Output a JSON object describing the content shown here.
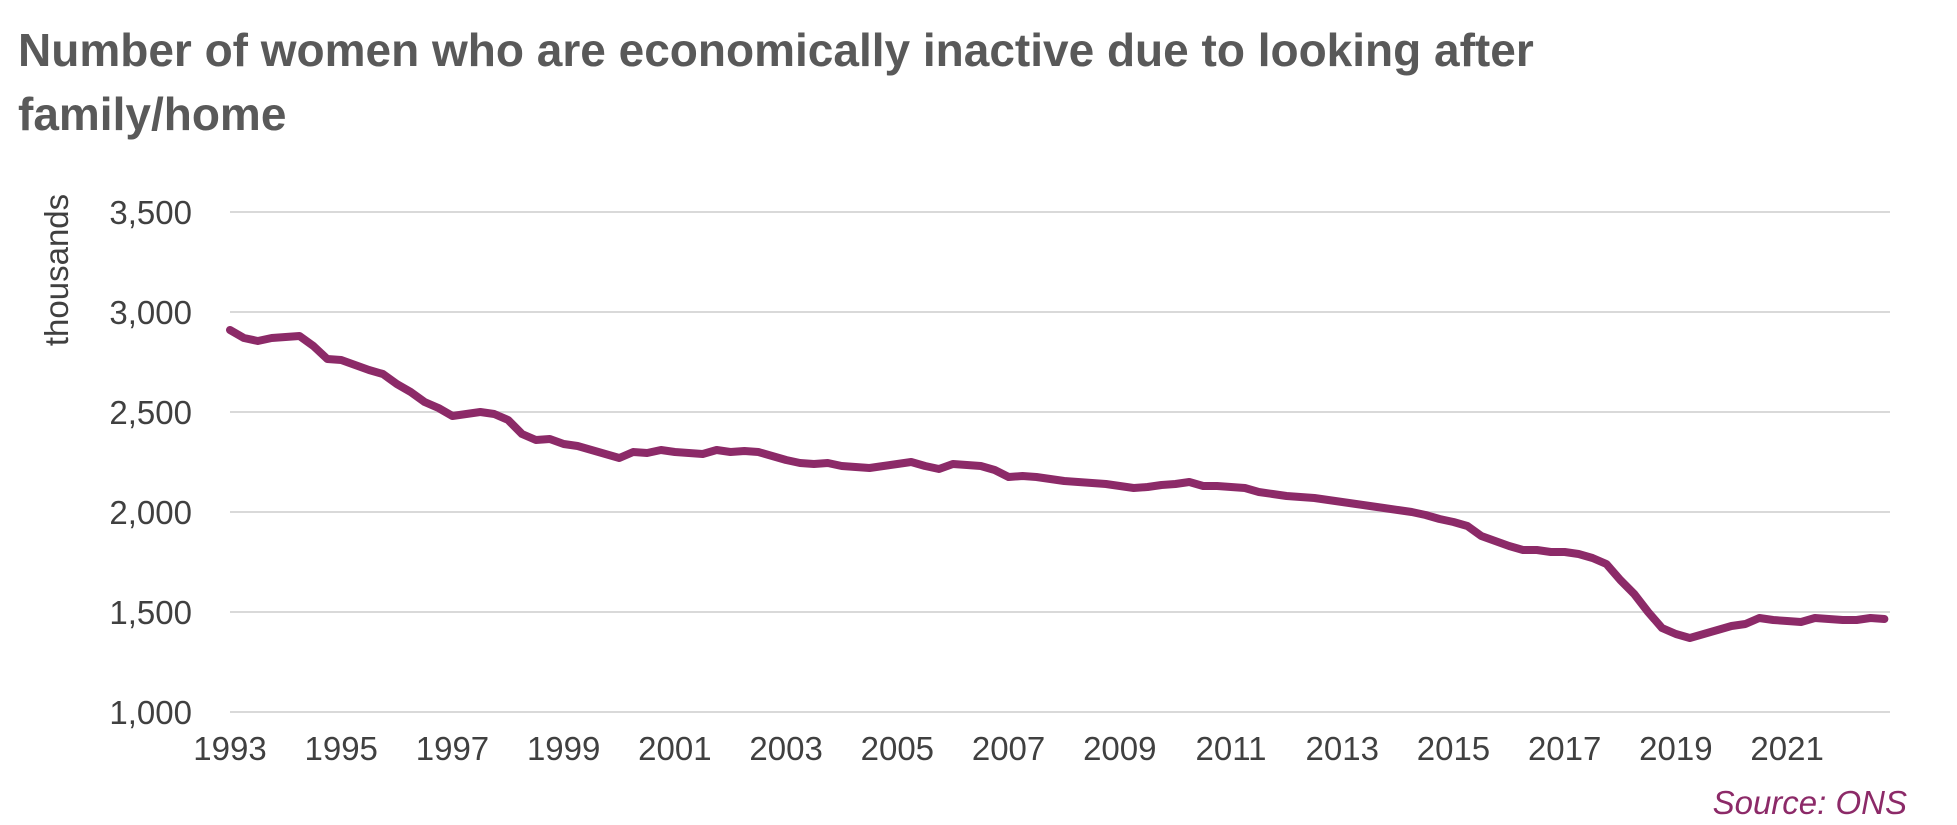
{
  "title": "Number of women who are economically inactive due to looking after family/home",
  "source": "Source: ONS",
  "colors": {
    "series": "#8c2a68",
    "grid": "#d9d9d9",
    "text": "#404040",
    "title": "#595959"
  },
  "chart_data": {
    "type": "line",
    "title": "Number of women who are economically inactive due to looking after family/home",
    "xlabel": "",
    "ylabel": "thousands",
    "xlim": [
      1993.0,
      2022.85
    ],
    "ylim": [
      1000,
      3500
    ],
    "x_ticks": [
      "1993",
      "1995",
      "1997",
      "1999",
      "2001",
      "2003",
      "2005",
      "2007",
      "2009",
      "2011",
      "2013",
      "2015",
      "2017",
      "2019",
      "2021"
    ],
    "y_ticks": [
      "1,000",
      "1,500",
      "2,000",
      "2,500",
      "3,000",
      "3,500"
    ],
    "grid": "horizontal",
    "legend": "none",
    "series": [
      {
        "x": [
          1993.0,
          1993.25,
          1993.5,
          1993.75,
          1994.0,
          1994.25,
          1994.5,
          1994.75,
          1995.0,
          1995.25,
          1995.5,
          1995.75,
          1996.0,
          1996.25,
          1996.5,
          1996.75,
          1997.0,
          1997.25,
          1997.5,
          1997.75,
          1998.0,
          1998.25,
          1998.5,
          1998.75,
          1999.0,
          1999.25,
          1999.5,
          1999.75,
          2000.0,
          2000.25,
          2000.5,
          2000.75,
          2001.0,
          2001.25,
          2001.5,
          2001.75,
          2002.0,
          2002.25,
          2002.5,
          2002.75,
          2003.0,
          2003.25,
          2003.5,
          2003.75,
          2004.0,
          2004.25,
          2004.5,
          2004.75,
          2005.0,
          2005.25,
          2005.5,
          2005.75,
          2006.0,
          2006.25,
          2006.5,
          2006.75,
          2007.0,
          2007.25,
          2007.5,
          2007.75,
          2008.0,
          2008.25,
          2008.5,
          2008.75,
          2009.0,
          2009.25,
          2009.5,
          2009.75,
          2010.0,
          2010.25,
          2010.5,
          2010.75,
          2011.0,
          2011.25,
          2011.5,
          2011.75,
          2012.0,
          2012.25,
          2012.5,
          2012.75,
          2013.0,
          2013.25,
          2013.5,
          2013.75,
          2014.0,
          2014.25,
          2014.5,
          2014.75,
          2015.0,
          2015.25,
          2015.5,
          2015.75,
          2016.0,
          2016.25,
          2016.5,
          2016.75,
          2017.0,
          2017.25,
          2017.5,
          2017.75,
          2018.0,
          2018.25,
          2018.5,
          2018.75,
          2019.0,
          2019.25,
          2019.5,
          2019.75,
          2020.0,
          2020.25,
          2020.5,
          2020.75,
          2021.0,
          2021.25,
          2021.5,
          2021.75,
          2022.0,
          2022.25,
          2022.5,
          2022.75
        ],
        "y": [
          2910,
          2870,
          2855,
          2870,
          2875,
          2880,
          2830,
          2765,
          2760,
          2735,
          2710,
          2690,
          2640,
          2600,
          2550,
          2520,
          2480,
          2490,
          2500,
          2490,
          2460,
          2390,
          2360,
          2365,
          2340,
          2330,
          2310,
          2290,
          2270,
          2300,
          2295,
          2310,
          2300,
          2295,
          2290,
          2310,
          2300,
          2305,
          2300,
          2280,
          2260,
          2245,
          2240,
          2245,
          2230,
          2225,
          2220,
          2230,
          2240,
          2250,
          2230,
          2215,
          2240,
          2235,
          2230,
          2210,
          2175,
          2180,
          2175,
          2165,
          2155,
          2150,
          2145,
          2140,
          2130,
          2120,
          2125,
          2135,
          2140,
          2150,
          2130,
          2130,
          2125,
          2120,
          2100,
          2090,
          2080,
          2075,
          2070,
          2060,
          2050,
          2040,
          2030,
          2020,
          2010,
          2000,
          1985,
          1965,
          1950,
          1930,
          1880,
          1855,
          1830,
          1810,
          1810,
          1800,
          1800,
          1790,
          1770,
          1740,
          1660,
          1590,
          1500,
          1420,
          1390,
          1370,
          1390,
          1410,
          1430,
          1440,
          1470,
          1460,
          1455,
          1450,
          1470,
          1465,
          1460,
          1460,
          1470,
          1465
        ]
      }
    ]
  }
}
